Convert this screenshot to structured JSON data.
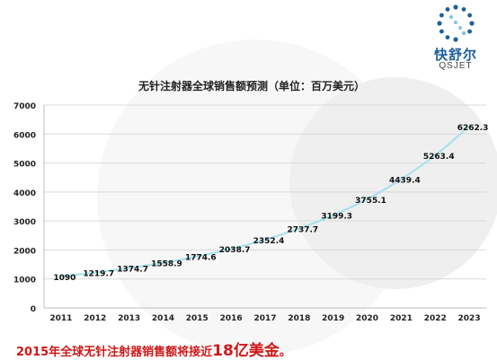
{
  "brand": {
    "name_cn": "快舒尔",
    "name_en": "QSJET",
    "logo_icon": "dotted-ring-logo-icon",
    "color": "#1d5f9c"
  },
  "chart_data": {
    "type": "line",
    "title": "无针注射器全球销售额预测（单位：百万美元）",
    "x": [
      "2011",
      "2012",
      "2013",
      "2014",
      "2015",
      "2016",
      "2017",
      "2018",
      "2019",
      "2020",
      "2021",
      "2022",
      "2023"
    ],
    "values": [
      1090,
      1219.7,
      1374.7,
      1558.9,
      1774.6,
      2038.7,
      2352.4,
      2737.7,
      3199.3,
      3755.1,
      4439.4,
      5263.4,
      6262.3
    ],
    "value_labels": [
      "1090",
      "1219.7",
      "1374.7",
      "1558.9",
      "1774.6",
      "2038.7",
      "2352.4",
      "2737.7",
      "3199.3",
      "3755.1",
      "4439.4",
      "5263.4",
      "6262.3"
    ],
    "yticks": [
      "0",
      "1000",
      "2000",
      "3000",
      "4000",
      "5000",
      "6000",
      "7000"
    ],
    "ylim": [
      0,
      7000
    ],
    "xlabel": "",
    "ylabel": "",
    "grid": true,
    "line_color": "#a9e2ea",
    "grid_color": "#d9d9d9"
  },
  "footer": {
    "text_before": "2015年全球无针注射器销售额将接近",
    "highlight": "18亿美金",
    "text_after": "。",
    "color": "#d01818"
  }
}
